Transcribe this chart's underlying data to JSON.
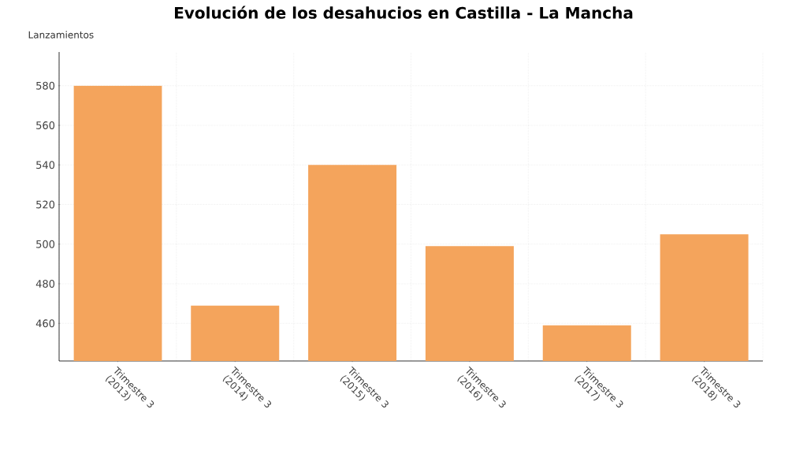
{
  "chart_data": {
    "type": "bar",
    "title": "Evolución de los desahucios en Castilla - La Mancha",
    "ylabel": "Lanzamientos",
    "categories": [
      "Trimestre 3 (2013)",
      "Trimestre 3 (2014)",
      "Trimestre 3 (2015)",
      "Trimestre 3 (2016)",
      "Trimestre 3 (2017)",
      "Trimestre 3 (2018)"
    ],
    "values": [
      580,
      469,
      540,
      499,
      459,
      505
    ],
    "color": "#f4a45c",
    "ylim": [
      441,
      597
    ],
    "yticks": [
      460,
      480,
      500,
      520,
      540,
      560,
      580
    ],
    "grid": true
  }
}
